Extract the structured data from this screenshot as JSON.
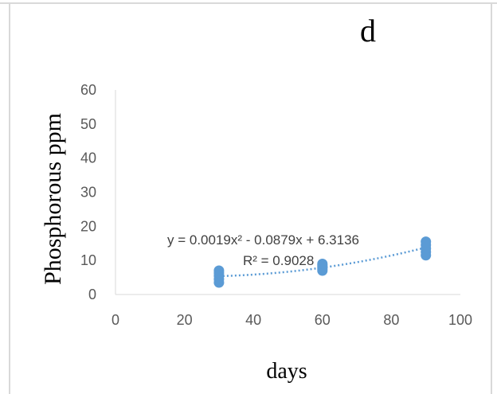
{
  "chart_data": {
    "type": "scatter",
    "title": "d",
    "xlabel": "days",
    "ylabel": "Phosphorous  ppm",
    "xlim": [
      0,
      100
    ],
    "ylim": [
      0,
      60
    ],
    "x_ticks": [
      "0",
      "20",
      "40",
      "60",
      "80",
      "100"
    ],
    "y_ticks": [
      "0",
      "10",
      "20",
      "30",
      "40",
      "50",
      "60"
    ],
    "grid": false,
    "series": [
      {
        "color": "#5b9bd5",
        "points": [
          {
            "x": 30,
            "y": 3.5
          },
          {
            "x": 30,
            "y": 4.5
          },
          {
            "x": 30,
            "y": 5.5
          },
          {
            "x": 30,
            "y": 6.3
          },
          {
            "x": 30,
            "y": 7.0
          },
          {
            "x": 60,
            "y": 7.0
          },
          {
            "x": 60,
            "y": 7.5
          },
          {
            "x": 60,
            "y": 8.0
          },
          {
            "x": 60,
            "y": 8.5
          },
          {
            "x": 60,
            "y": 9.0
          },
          {
            "x": 90,
            "y": 11.5
          },
          {
            "x": 90,
            "y": 12.5
          },
          {
            "x": 90,
            "y": 13.5
          },
          {
            "x": 90,
            "y": 14.5
          },
          {
            "x": 90,
            "y": 15.5
          }
        ]
      }
    ],
    "trendline": {
      "type": "polynomial",
      "order": 2,
      "color": "#5b9bd5",
      "coefficients": [
        0.0019,
        -0.0879,
        6.3136
      ],
      "x_range": [
        30,
        90
      ]
    },
    "annotations": {
      "equation": "y = 0.0019x² - 0.0879x + 6.3136",
      "r_squared": "R² = 0.9028"
    }
  }
}
